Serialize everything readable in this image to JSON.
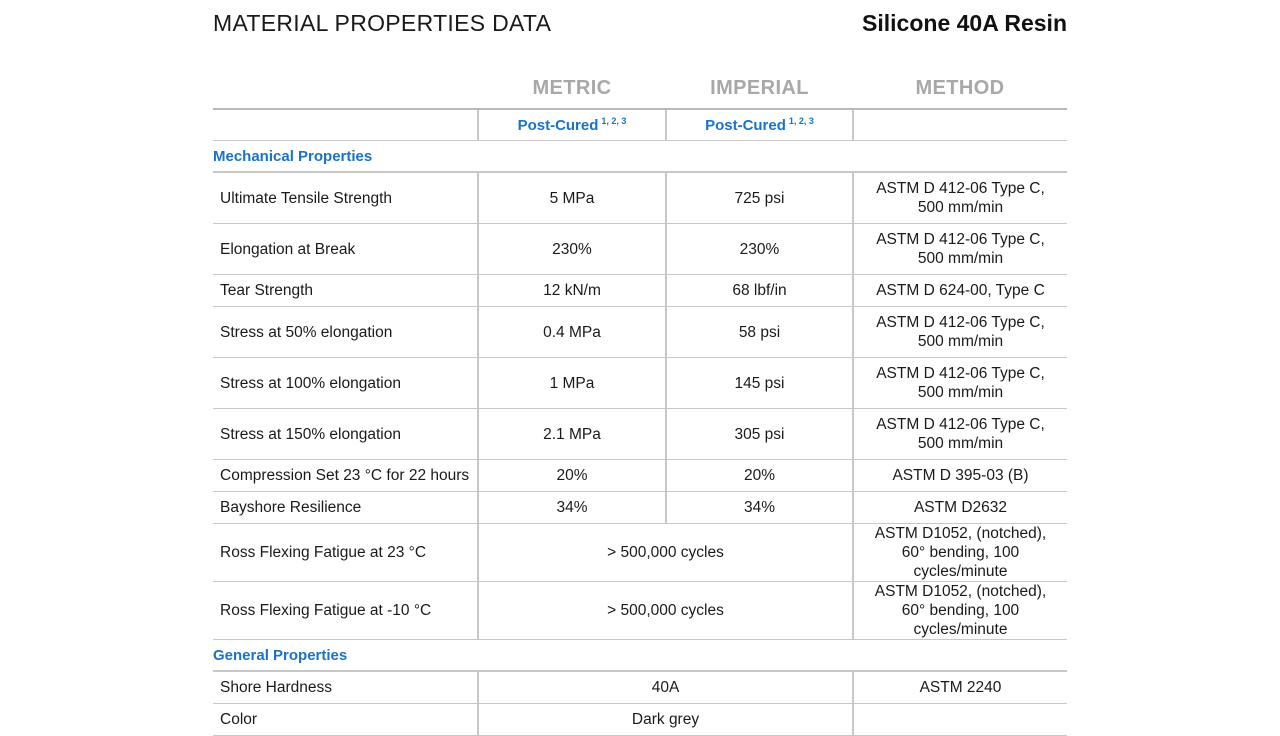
{
  "header": {
    "title": "MATERIAL PROPERTIES DATA",
    "product": "Silicone 40A Resin"
  },
  "columns": {
    "metric": "METRIC",
    "imperial": "IMPERIAL",
    "method": "METHOD"
  },
  "subheader": {
    "metric_label": "Post-Cured",
    "metric_sup": "1, 2, 3",
    "imperial_label": "Post-Cured",
    "imperial_sup": "1, 2, 3"
  },
  "sections": {
    "mechanical": "Mechanical Properties",
    "general": "General Properties"
  },
  "mechanical_rows": [
    {
      "name": "Ultimate Tensile Strength",
      "metric": "5 MPa",
      "imperial": "725 psi",
      "method_1": "ASTM D 412-06 Type C,",
      "method_2": "500 mm/min"
    },
    {
      "name": "Elongation at Break",
      "metric": "230%",
      "imperial": "230%",
      "method_1": "ASTM D 412-06 Type C,",
      "method_2": "500 mm/min"
    },
    {
      "name": "Tear Strength",
      "metric": "12 kN/m",
      "imperial": "68 lbf/in",
      "method_1": "ASTM D 624-00, Type C",
      "method_2": ""
    },
    {
      "name": "Stress at 50% elongation",
      "metric": "0.4 MPa",
      "imperial": "58 psi",
      "method_1": "ASTM D 412-06 Type C,",
      "method_2": "500 mm/min"
    },
    {
      "name": "Stress at 100% elongation",
      "metric": "1 MPa",
      "imperial": "145 psi",
      "method_1": "ASTM D 412-06 Type C,",
      "method_2": "500 mm/min"
    },
    {
      "name": "Stress at 150% elongation",
      "metric": "2.1 MPa",
      "imperial": "305 psi",
      "method_1": "ASTM D 412-06 Type C,",
      "method_2": "500 mm/min"
    },
    {
      "name": "Compression Set 23 °C for 22 hours",
      "metric": "20%",
      "imperial": "20%",
      "method_1": "ASTM D 395-03 (B)",
      "method_2": ""
    },
    {
      "name": "Bayshore Resilience",
      "metric": "34%",
      "imperial": "34%",
      "method_1": "ASTM D2632",
      "method_2": ""
    },
    {
      "name": "Ross Flexing Fatigue at 23 °C",
      "value": "> 500,000 cycles",
      "method_1": "ASTM D1052, (notched),",
      "method_2": "60° bending, 100 cycles/minute"
    },
    {
      "name": "Ross Flexing Fatigue at -10 °C",
      "value": "> 500,000 cycles",
      "method_1": "ASTM D1052, (notched),",
      "method_2": "60° bending, 100 cycles/minute"
    }
  ],
  "general_rows": [
    {
      "name": "Shore Hardness",
      "value": "40A",
      "method_1": "ASTM 2240"
    },
    {
      "name": "Color",
      "value": "Dark grey",
      "method_1": ""
    }
  ]
}
